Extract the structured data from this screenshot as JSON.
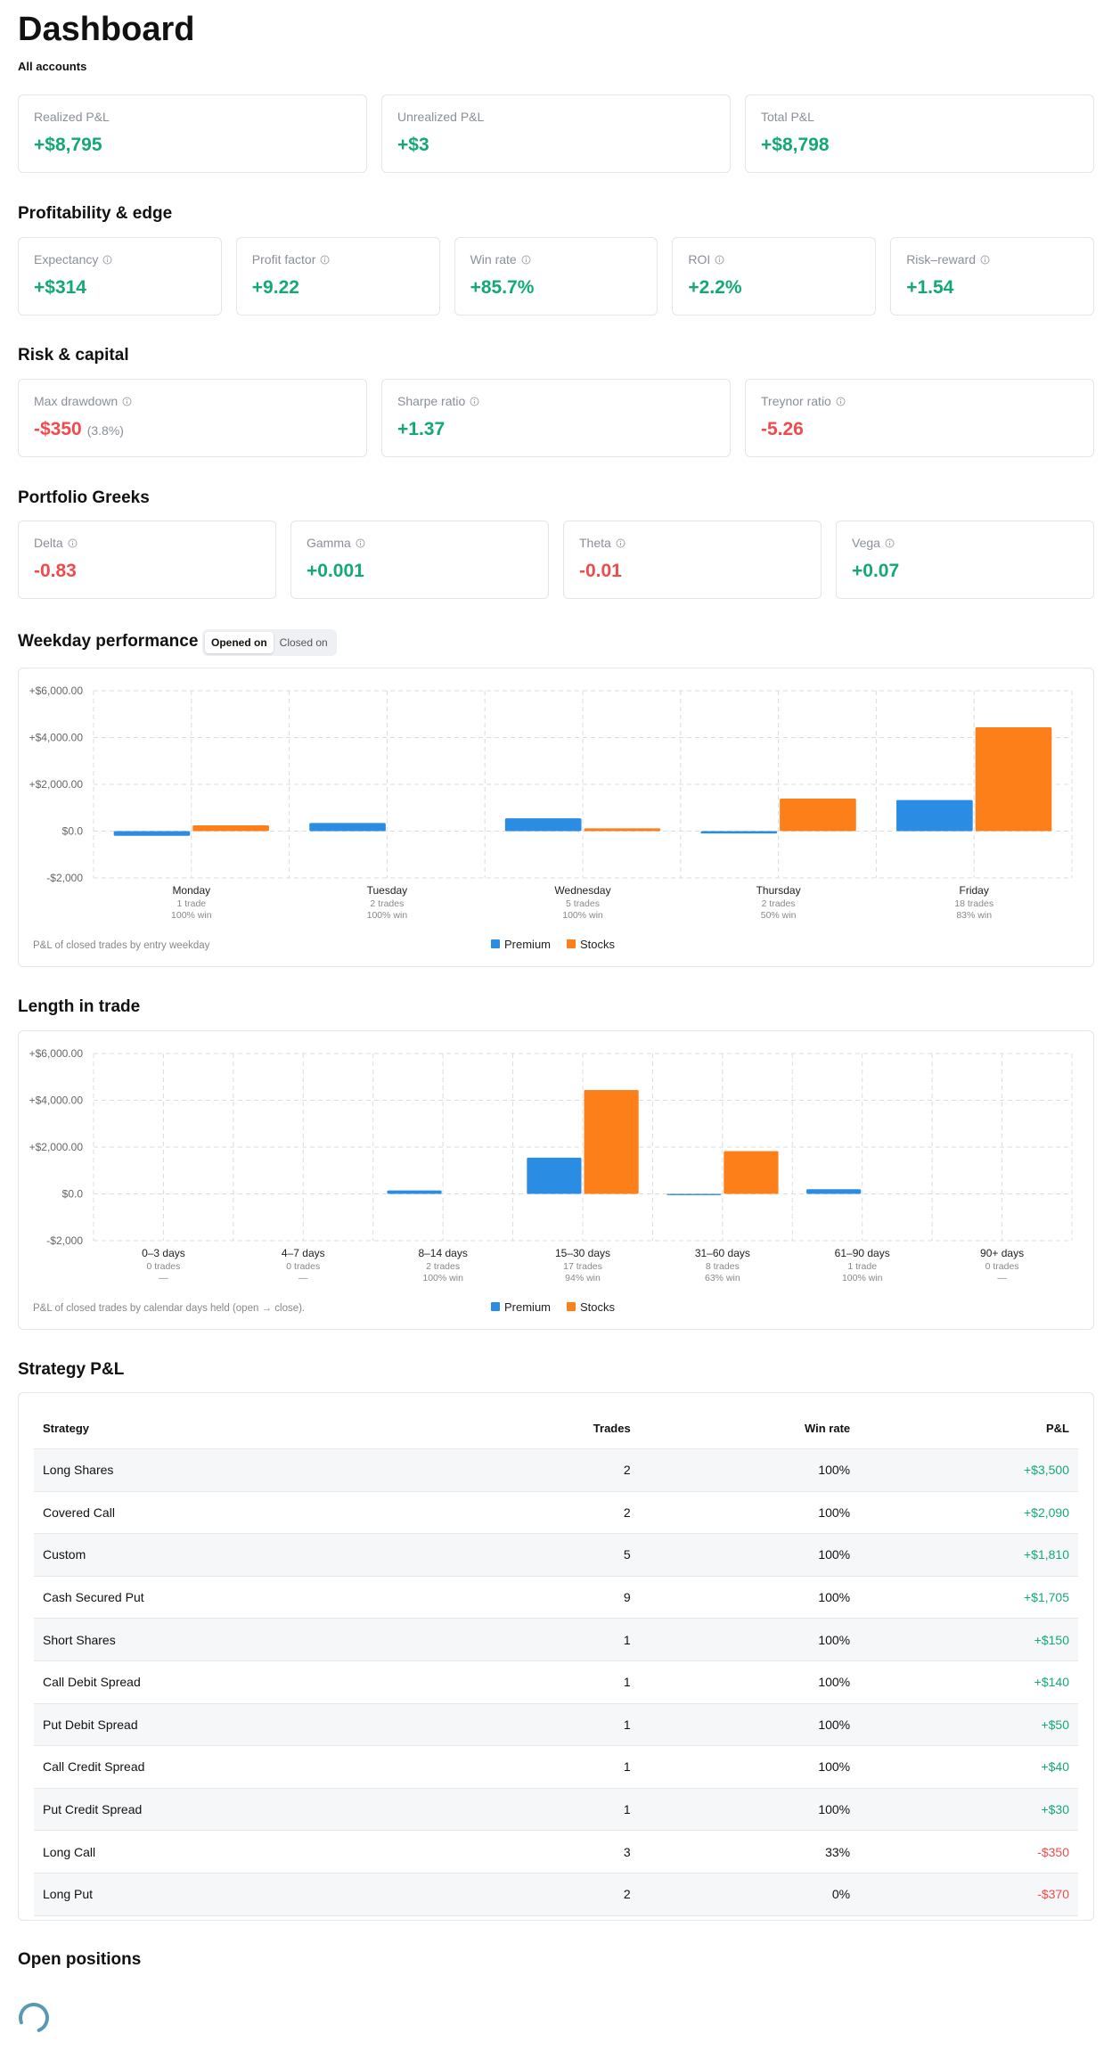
{
  "header": {
    "title": "Dashboard",
    "subtitle": "All accounts"
  },
  "summary": {
    "cards": [
      {
        "label": "Realized P&L",
        "value": "+$8,795"
      },
      {
        "label": "Unrealized P&L",
        "value": "+$3"
      },
      {
        "label": "Total P&L",
        "value": "+$8,798"
      }
    ]
  },
  "profitability": {
    "title": "Profitability & edge",
    "cards": [
      {
        "label": "Expectancy",
        "value": "+$314"
      },
      {
        "label": "Profit factor",
        "value": "+9.22"
      },
      {
        "label": "Win rate",
        "value": "+85.7%"
      },
      {
        "label": "ROI",
        "value": "+2.2%"
      },
      {
        "label": "Risk–reward",
        "value": "+1.54"
      }
    ]
  },
  "risk": {
    "title": "Risk & capital",
    "cards": [
      {
        "label": "Max drawdown",
        "value": "-$350",
        "note": "(3.8%)"
      },
      {
        "label": "Sharpe ratio",
        "value": "+1.37"
      },
      {
        "label": "Treynor ratio",
        "value": "-5.26"
      }
    ]
  },
  "greeks": {
    "title": "Portfolio Greeks",
    "cards": [
      {
        "label": "Delta",
        "value": "-0.83"
      },
      {
        "label": "Gamma",
        "value": "+0.001"
      },
      {
        "label": "Theta",
        "value": "-0.01"
      },
      {
        "label": "Vega",
        "value": "+0.07"
      }
    ]
  },
  "weekday": {
    "title": "Weekday performance",
    "toggle": [
      "Opened on",
      "Closed on"
    ],
    "chart": {
      "type": "bar",
      "categories": [
        "Monday",
        "Tuesday",
        "Wednesday",
        "Thursday",
        "Friday"
      ],
      "category_details": [
        [
          "1 trade",
          "100% win"
        ],
        [
          "2 trades",
          "100% win"
        ],
        [
          "5 trades",
          "100% win"
        ],
        [
          "2 trades",
          "50% win"
        ],
        [
          "18 trades",
          "83% win"
        ]
      ],
      "series": [
        {
          "name": "Premium",
          "color": "#2b8ce3",
          "values": [
            -200,
            350,
            550,
            -100,
            1330
          ]
        },
        {
          "name": "Stocks",
          "color": "#fd7f1a",
          "values": [
            250,
            null,
            120,
            1390,
            4440
          ]
        }
      ],
      "ylim": [
        -2000,
        6000
      ],
      "yticks": [
        {
          "value": -2000,
          "label": "-$2,000"
        },
        {
          "value": 0,
          "label": "$0.0"
        },
        {
          "value": 2000,
          "label": "+$2,000.00"
        },
        {
          "value": 4000,
          "label": "+$4,000.00"
        },
        {
          "value": 6000,
          "label": "+$6,000.00"
        }
      ],
      "grid": true,
      "caption": "P&L of closed trades by entry weekday"
    }
  },
  "length": {
    "title": "Length in trade",
    "chart": {
      "type": "bar",
      "categories": [
        "0–3 days",
        "4–7 days",
        "8–14 days",
        "15–30 days",
        "31–60 days",
        "61–90 days",
        "90+ days"
      ],
      "category_details": [
        [
          "0 trades",
          "—"
        ],
        [
          "0 trades",
          "—"
        ],
        [
          "2 trades",
          "100% win"
        ],
        [
          "17 trades",
          "94% win"
        ],
        [
          "8 trades",
          "63% win"
        ],
        [
          "1 trade",
          "100% win"
        ],
        [
          "0 trades",
          "—"
        ]
      ],
      "series": [
        {
          "name": "Premium",
          "color": "#2b8ce3",
          "values": [
            null,
            null,
            150,
            1550,
            -50,
            200,
            null
          ]
        },
        {
          "name": "Stocks",
          "color": "#fd7f1a",
          "values": [
            null,
            null,
            null,
            4440,
            1830,
            null,
            null
          ]
        }
      ],
      "ylim": [
        -2000,
        6000
      ],
      "yticks": [
        {
          "value": -2000,
          "label": "-$2,000"
        },
        {
          "value": 0,
          "label": "$0.0"
        },
        {
          "value": 2000,
          "label": "+$2,000.00"
        },
        {
          "value": 4000,
          "label": "+$4,000.00"
        },
        {
          "value": 6000,
          "label": "+$6,000.00"
        }
      ],
      "grid": true,
      "caption": "P&L of closed trades by calendar days held (open → close)."
    }
  },
  "strategy": {
    "title": "Strategy P&L",
    "columns": [
      "Strategy",
      "Trades",
      "Win rate",
      "P&L"
    ],
    "rows": [
      [
        "Long Shares",
        2,
        "100%",
        "+$3,500"
      ],
      [
        "Covered Call",
        2,
        "100%",
        "+$2,090"
      ],
      [
        "Custom",
        5,
        "100%",
        "+$1,810"
      ],
      [
        "Cash Secured Put",
        9,
        "100%",
        "+$1,705"
      ],
      [
        "Short Shares",
        1,
        "100%",
        "+$150"
      ],
      [
        "Call Debit Spread",
        1,
        "100%",
        "+$140"
      ],
      [
        "Put Debit Spread",
        1,
        "100%",
        "+$50"
      ],
      [
        "Call Credit Spread",
        1,
        "100%",
        "+$40"
      ],
      [
        "Put Credit Spread",
        1,
        "100%",
        "+$30"
      ],
      [
        "Long Call",
        3,
        "33%",
        "-$350"
      ],
      [
        "Long Put",
        2,
        "0%",
        "-$370"
      ]
    ]
  },
  "open_positions": {
    "title": "Open positions"
  }
}
